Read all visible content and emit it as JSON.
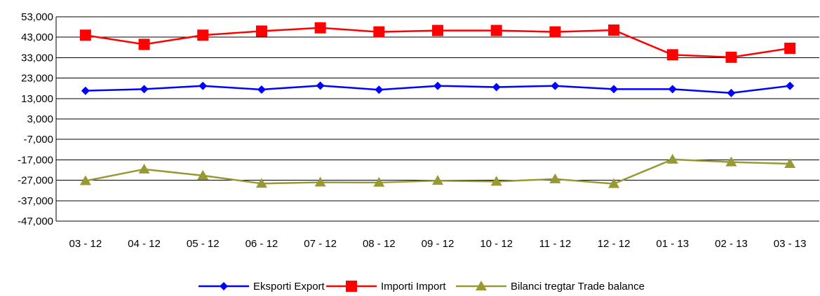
{
  "chart_data": {
    "type": "line",
    "title": "",
    "xlabel": "",
    "ylabel": "",
    "categories": [
      "03 - 12",
      "04 - 12",
      "05 - 12",
      "06 - 12",
      "07 - 12",
      "08 - 12",
      "09 - 12",
      "10 - 12",
      "11 - 12",
      "12 - 12",
      "01 - 13",
      "02 - 13",
      "03 - 13"
    ],
    "ylim": [
      -47000,
      53000
    ],
    "yticks": [
      53000,
      43000,
      33000,
      23000,
      13000,
      3000,
      -7000,
      -17000,
      -27000,
      -37000,
      -47000
    ],
    "ytick_labels": [
      "53,000",
      "43,000",
      "33,000",
      "23,000",
      "13,000",
      "3,000",
      "-7,000",
      "-17,000",
      "-27,000",
      "-37,000",
      "-47,000"
    ],
    "grid": true,
    "legend_position": "bottom",
    "series": [
      {
        "name": "Eksporti Export",
        "color": "#0000ff",
        "marker": "diamond",
        "values": [
          16800,
          17600,
          19200,
          17400,
          19300,
          17300,
          19200,
          18600,
          19200,
          17600,
          17600,
          15700,
          19200
        ]
      },
      {
        "name": "Importi Import",
        "color": "#ff0000",
        "marker": "square",
        "values": [
          44000,
          39500,
          44000,
          46000,
          47600,
          45600,
          46300,
          46300,
          45600,
          46500,
          34400,
          33200,
          37600
        ]
      },
      {
        "name": "Bilanci tregtar Trade balance",
        "color": "#999933",
        "marker": "triangle",
        "values": [
          -27300,
          -21600,
          -24700,
          -28600,
          -28000,
          -28100,
          -27200,
          -27600,
          -26400,
          -28700,
          -16800,
          -18100,
          -18900
        ]
      }
    ]
  }
}
